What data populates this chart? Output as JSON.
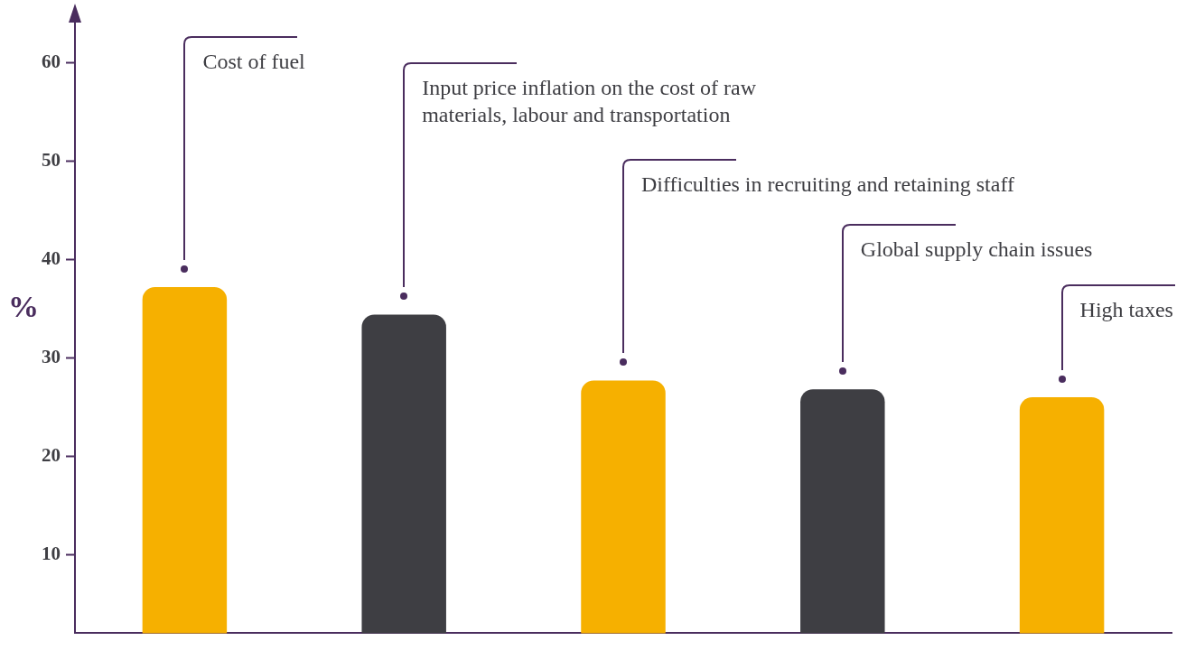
{
  "chart_data": {
    "type": "bar",
    "ylabel": "%",
    "categories": [
      null,
      null,
      null,
      null,
      null
    ],
    "annotations": [
      "Cost of fuel",
      "Input price inflation on the cost of raw materials, labour and transportation",
      "Difficulties in recruiting and retaining staff",
      "Global supply chain issues",
      "High taxes"
    ],
    "values": [
      37.2,
      34.4,
      27.7,
      26.8,
      26.0
    ],
    "colors": [
      "#f6b000",
      "#3e3e43",
      "#f6b000",
      "#3e3e43",
      "#f6b000"
    ],
    "ylim": [
      2,
      64
    ],
    "yticks": [
      10,
      20,
      30,
      40,
      50,
      60
    ],
    "grid": false,
    "legend": false,
    "tick_labels": "y"
  }
}
